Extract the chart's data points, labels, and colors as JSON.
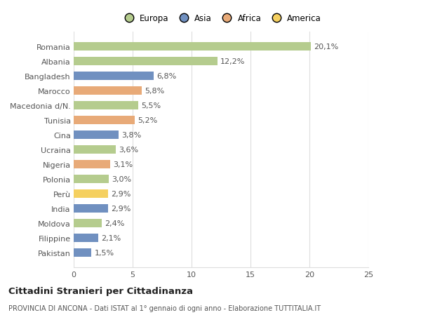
{
  "categories": [
    "Romania",
    "Albania",
    "Bangladesh",
    "Marocco",
    "Macedonia d/N.",
    "Tunisia",
    "Cina",
    "Ucraina",
    "Nigeria",
    "Polonia",
    "Perù",
    "India",
    "Moldova",
    "Filippine",
    "Pakistan"
  ],
  "values": [
    20.1,
    12.2,
    6.8,
    5.8,
    5.5,
    5.2,
    3.8,
    3.6,
    3.1,
    3.0,
    2.9,
    2.9,
    2.4,
    2.1,
    1.5
  ],
  "labels": [
    "20,1%",
    "12,2%",
    "6,8%",
    "5,8%",
    "5,5%",
    "5,2%",
    "3,8%",
    "3,6%",
    "3,1%",
    "3,0%",
    "2,9%",
    "2,9%",
    "2,4%",
    "2,1%",
    "1,5%"
  ],
  "continent": [
    "Europa",
    "Europa",
    "Asia",
    "Africa",
    "Europa",
    "Africa",
    "Asia",
    "Europa",
    "Africa",
    "Europa",
    "America",
    "Asia",
    "Europa",
    "Asia",
    "Asia"
  ],
  "colors": {
    "Europa": "#b5cc8e",
    "Asia": "#7090c0",
    "Africa": "#e8aa78",
    "America": "#f5d060"
  },
  "legend_labels": [
    "Europa",
    "Asia",
    "Africa",
    "America"
  ],
  "legend_colors": [
    "#b5cc8e",
    "#7090c0",
    "#e8aa78",
    "#f5d060"
  ],
  "title": "Cittadini Stranieri per Cittadinanza",
  "subtitle": "PROVINCIA DI ANCONA - Dati ISTAT al 1° gennaio di ogni anno - Elaborazione TUTTITALIA.IT",
  "xlim": [
    0,
    25
  ],
  "xticks": [
    0,
    5,
    10,
    15,
    20,
    25
  ],
  "background_color": "#ffffff",
  "grid_color": "#dddddd",
  "label_color": "#555555",
  "bar_height": 0.55
}
